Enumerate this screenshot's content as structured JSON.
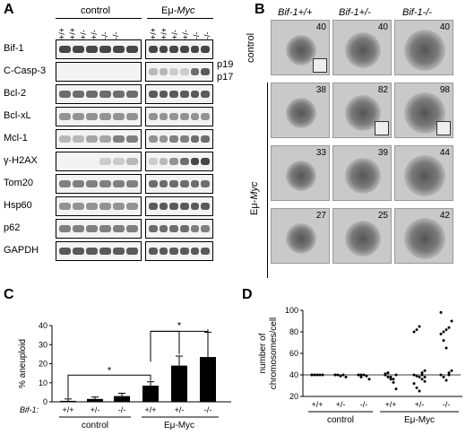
{
  "panels": {
    "a": "A",
    "b": "B",
    "c": "C",
    "d": "D"
  },
  "panelA": {
    "group_control": "control",
    "group_myc_prefix": "Eμ-",
    "group_myc_italic": "Myc",
    "genotypes": [
      "+/+",
      "+/+",
      "+/-",
      "+/-",
      "-/-",
      "-/-",
      "+/+",
      "+/+",
      "+/-",
      "+/-",
      "-/-",
      "-/-"
    ],
    "proteins": [
      "Bif-1",
      "C-Casp-3",
      "Bcl-2",
      "Bcl-xL",
      "Mcl-1",
      "γ-H2AX",
      "Tom20",
      "Hsp60",
      "p62",
      "GAPDH"
    ],
    "side_labels": [
      "p19",
      "p17"
    ]
  },
  "panelB": {
    "col_headers": [
      "Bif-1+/+",
      "Bif-1+/-",
      "Bif-1-/-"
    ],
    "row_control": "control",
    "row_myc_prefix": "Eμ-",
    "row_myc_italic": "Myc",
    "counts": [
      [
        "40",
        "40",
        "40"
      ],
      [
        "38",
        "82",
        "98"
      ],
      [
        "33",
        "39",
        "44"
      ],
      [
        "27",
        "25",
        "42"
      ]
    ]
  },
  "chart_data": [
    {
      "type": "bar",
      "panel": "C",
      "ylabel": "% aneuploid",
      "ylim": [
        0,
        40
      ],
      "yticks": [
        "0",
        "10",
        "20",
        "30",
        "40"
      ],
      "row_label": "Bif-1:",
      "categories": [
        "+/+",
        "+/-",
        "-/-",
        "+/+",
        "+/-",
        "-/-"
      ],
      "groups": [
        "control",
        "Eμ-Myc"
      ],
      "values": [
        0.5,
        1.5,
        3,
        8.5,
        19,
        23.5
      ],
      "errors": [
        1,
        1,
        1.5,
        2,
        5,
        13
      ],
      "significance": [
        "*",
        "*"
      ]
    },
    {
      "type": "scatter",
      "panel": "D",
      "ylabel": "number of chromosomes/cell",
      "ylim": [
        20,
        100
      ],
      "yticks": [
        "20",
        "40",
        "60",
        "80",
        "100"
      ],
      "categories": [
        "+/+",
        "+/-",
        "-/-",
        "+/+",
        "+/-",
        "-/-"
      ],
      "groups": [
        "control",
        "Eμ-Myc"
      ],
      "reference_line": 40,
      "points": [
        [
          40,
          40,
          40,
          40,
          40,
          40
        ],
        [
          40,
          40,
          39,
          40,
          38,
          40
        ],
        [
          40,
          38,
          40,
          39,
          36,
          40,
          40
        ],
        [
          40,
          38,
          36,
          33,
          27,
          40,
          42,
          38,
          36,
          40,
          41
        ],
        [
          40,
          39,
          38,
          36,
          34,
          32,
          28,
          25,
          42,
          44,
          80,
          82,
          85,
          40,
          38
        ],
        [
          40,
          38,
          35,
          42,
          44,
          78,
          80,
          82,
          84,
          90,
          98,
          72,
          65,
          40
        ]
      ]
    }
  ]
}
